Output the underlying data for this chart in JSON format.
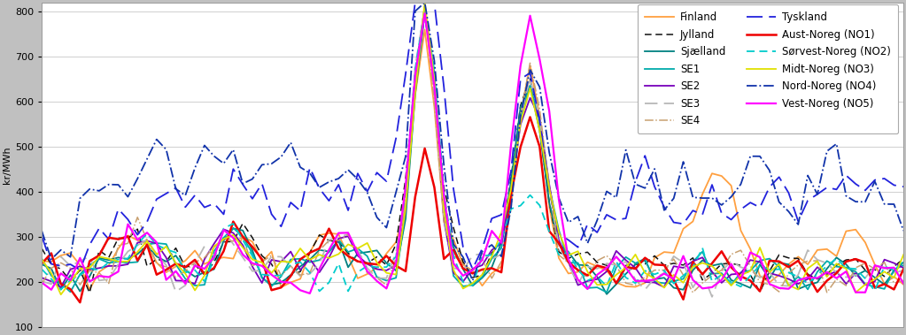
{
  "ylabel": "kr/MWh",
  "ylim": [
    100,
    820
  ],
  "yticks": [
    100,
    200,
    300,
    400,
    500,
    600,
    700,
    800
  ],
  "n_points": 91,
  "background_color": "#c0c0c0",
  "plot_background": "#ffffff",
  "grid_color": "#c8c8c8",
  "legend_labels_col1": [
    "Finland",
    "Sjælland",
    "SE2",
    "SE4",
    "Aust-Noreg (NO1)",
    "Midt-Noreg (NO3)",
    "Vest-Noreg (NO5)"
  ],
  "legend_labels_col2": [
    "Jylland",
    "SE1",
    "SE3",
    "Tyskland",
    "Sørvest-Noreg (NO2)",
    "Nord-Noreg (NO4)"
  ]
}
